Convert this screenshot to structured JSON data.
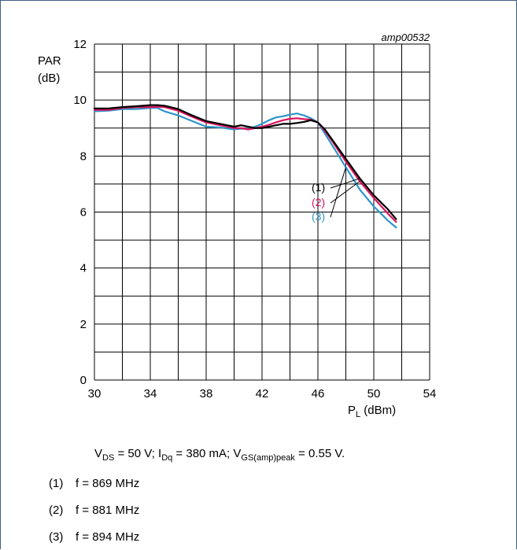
{
  "chart_data": {
    "type": "line",
    "figure_id": "amp00532",
    "ylabel_line1": "PAR",
    "ylabel_line2": "(dB)",
    "xlabel_main": "P",
    "xlabel_sub": "L",
    "xlabel_unit": " (dBm)",
    "xlim": [
      30,
      54
    ],
    "ylim": [
      0,
      12
    ],
    "xticks": [
      30,
      34,
      38,
      42,
      46,
      50,
      54
    ],
    "yticks": [
      0,
      2,
      4,
      6,
      8,
      10,
      12
    ],
    "grid": true,
    "series": [
      {
        "name": "(1)",
        "color": "#000000",
        "x": [
          30,
          31,
          32,
          33,
          34,
          34.5,
          35,
          36,
          37,
          38,
          39,
          40,
          40.5,
          41,
          41.5,
          42,
          42.5,
          43,
          43.5,
          44,
          44.5,
          45,
          45.5,
          46,
          46.5,
          47,
          48,
          49,
          50,
          51,
          51.6
        ],
        "y": [
          9.7,
          9.7,
          9.75,
          9.78,
          9.82,
          9.82,
          9.8,
          9.68,
          9.45,
          9.25,
          9.15,
          9.05,
          9.1,
          9.05,
          9.0,
          9.0,
          9.05,
          9.1,
          9.15,
          9.15,
          9.18,
          9.22,
          9.28,
          9.2,
          8.95,
          8.6,
          7.9,
          7.2,
          6.6,
          6.1,
          5.75
        ]
      },
      {
        "name": "(2)",
        "color": "#d9145f",
        "x": [
          30,
          31,
          32,
          33,
          34,
          34.5,
          35,
          36,
          37,
          38,
          39,
          40,
          40.5,
          41,
          41.5,
          42,
          42.5,
          43,
          43.5,
          44,
          44.5,
          45,
          45.5,
          46,
          46.5,
          47,
          48,
          49,
          50,
          51,
          51.6
        ],
        "y": [
          9.65,
          9.65,
          9.72,
          9.75,
          9.75,
          9.76,
          9.75,
          9.62,
          9.4,
          9.2,
          9.1,
          9.0,
          9.0,
          8.95,
          9.0,
          9.05,
          9.12,
          9.2,
          9.28,
          9.33,
          9.35,
          9.32,
          9.3,
          9.2,
          8.9,
          8.55,
          7.8,
          7.1,
          6.5,
          5.95,
          5.65
        ]
      },
      {
        "name": "(3)",
        "color": "#2f95c8",
        "x": [
          30,
          31,
          32,
          33,
          34,
          34.5,
          35,
          36,
          37,
          38,
          39,
          40,
          40.5,
          41,
          41.5,
          42,
          42.5,
          43,
          43.5,
          44,
          44.5,
          45,
          45.5,
          46,
          46.5,
          47,
          48,
          49,
          50,
          51,
          51.6
        ],
        "y": [
          9.6,
          9.62,
          9.68,
          9.68,
          9.72,
          9.72,
          9.6,
          9.45,
          9.25,
          9.05,
          9.02,
          8.95,
          8.98,
          8.98,
          9.05,
          9.15,
          9.28,
          9.38,
          9.42,
          9.48,
          9.52,
          9.45,
          9.35,
          9.2,
          8.8,
          8.4,
          7.6,
          6.8,
          6.2,
          5.7,
          5.45
        ]
      }
    ]
  },
  "caption": {
    "vds": "V",
    "vds_sub": "DS",
    "vds_val": " = 50 V; I",
    "idq_sub": "Dq",
    "idq_val": " = 380 mA; V",
    "vgs_sub": "GS(amp)peak",
    "vgs_val": " = 0.55 V."
  },
  "notes": [
    {
      "num": "(1)",
      "text": "f = 869 MHz"
    },
    {
      "num": "(2)",
      "text": "f = 881 MHz"
    },
    {
      "num": "(3)",
      "text": "f = 894 MHz"
    }
  ]
}
